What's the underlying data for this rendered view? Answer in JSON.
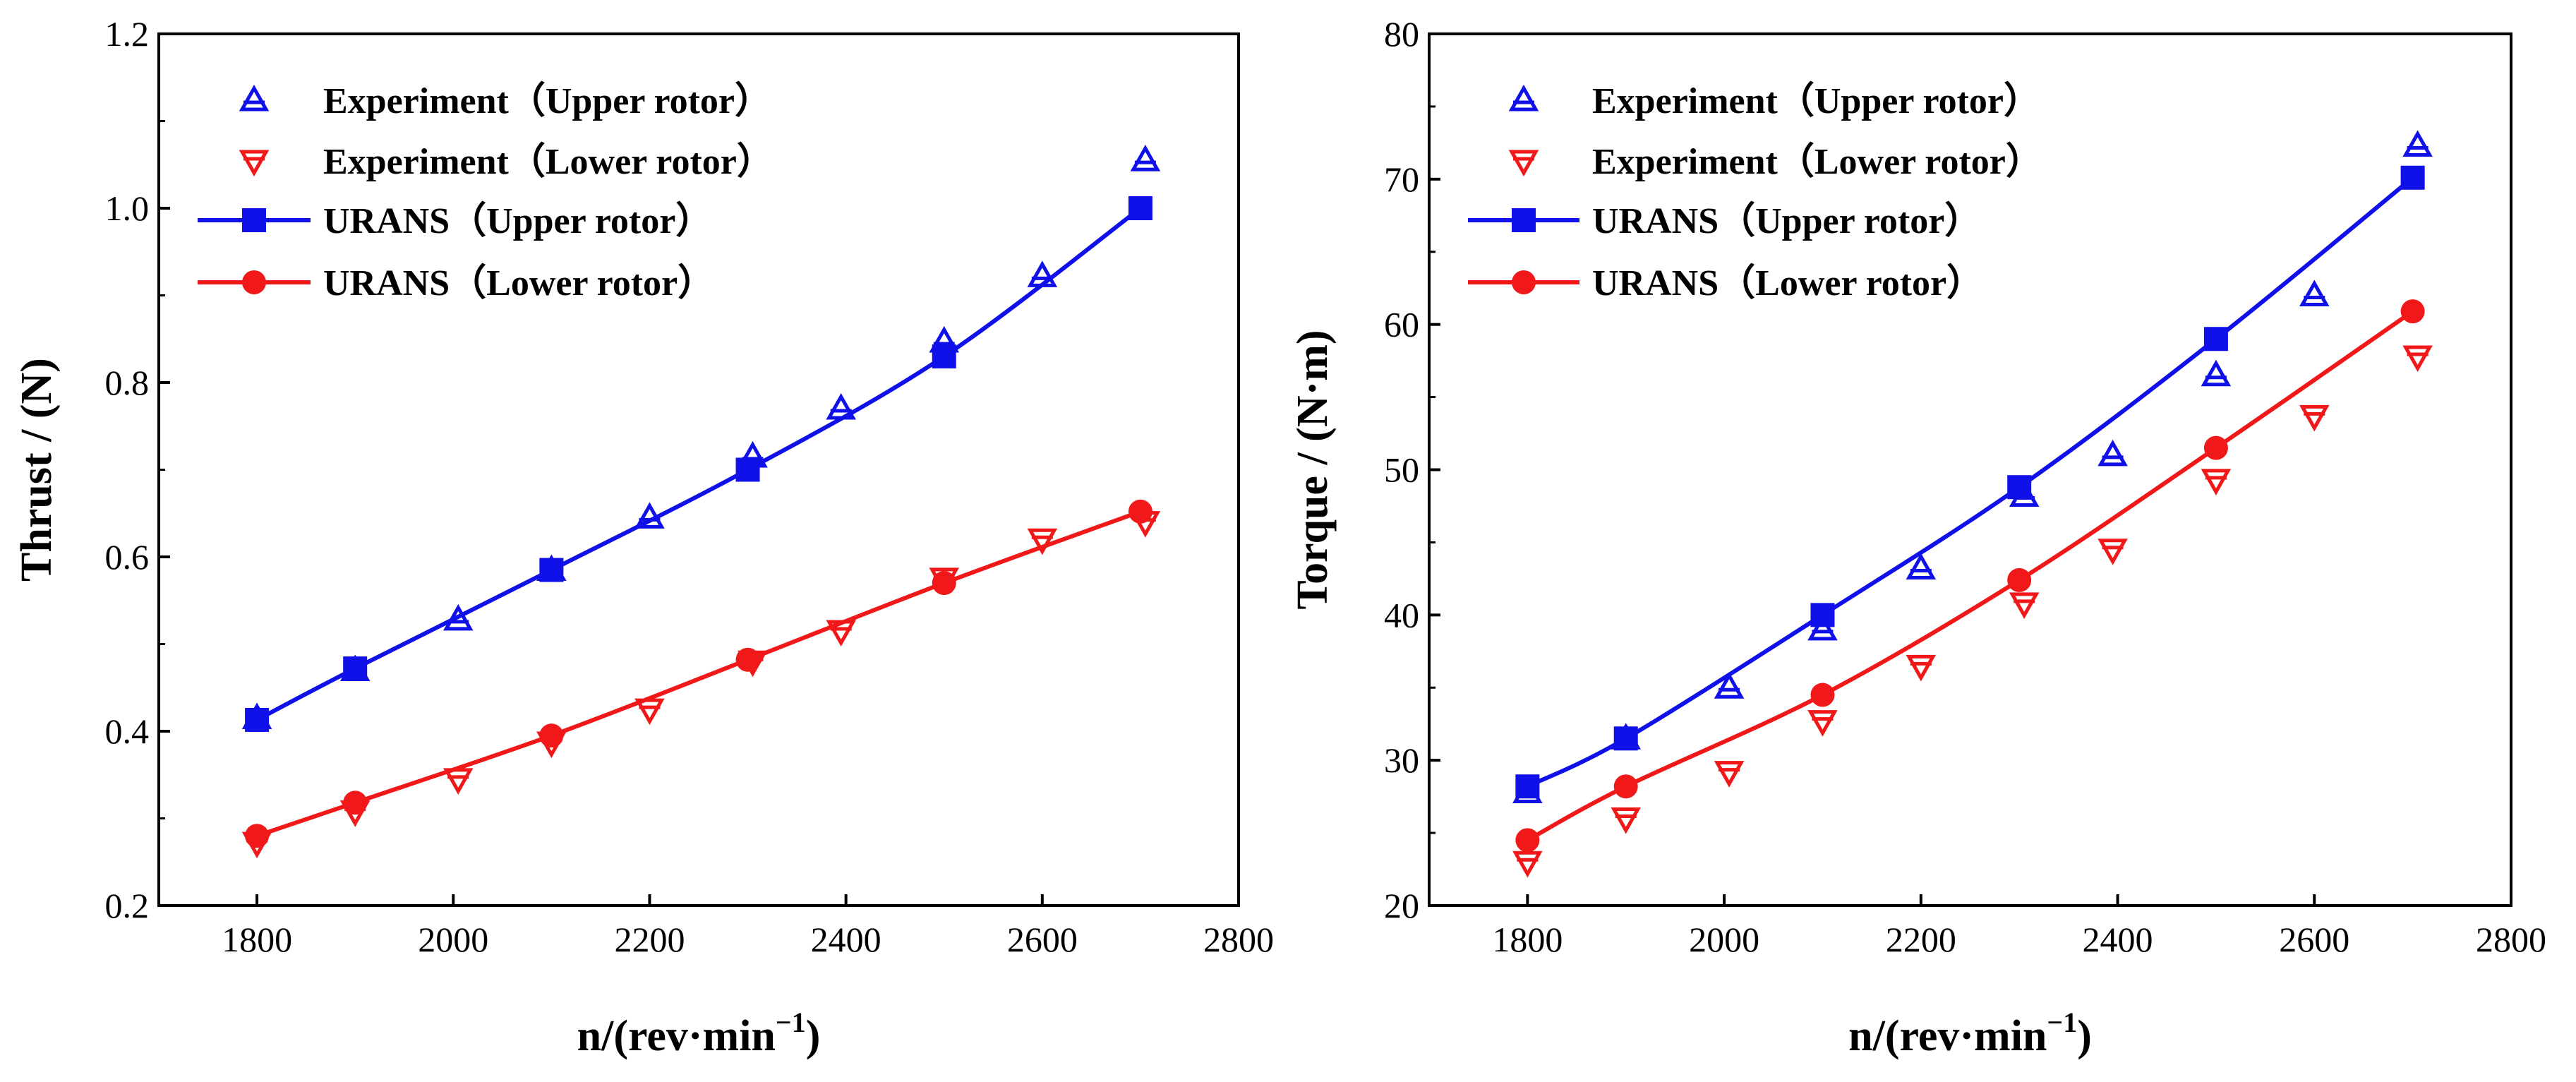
{
  "chart_data": [
    {
      "type": "line",
      "id": "thrust",
      "xlabel": "n/(rev·min",
      "xlabel_sup": "−1",
      "xlabel_close": ")",
      "ylabel": "Thrust / (N)",
      "xlim": [
        1700,
        2800
      ],
      "ylim": [
        0.2,
        1.2
      ],
      "xticks": [
        1800,
        2000,
        2200,
        2400,
        2600,
        2800
      ],
      "xtick_labels": [
        "1800",
        "2000",
        "2200",
        "2400",
        "2600",
        "2800"
      ],
      "yticks": [
        0.2,
        0.4,
        0.6,
        0.8,
        1.0,
        1.2
      ],
      "ytick_labels": [
        "0.2",
        "0.4",
        "0.6",
        "0.8",
        "1.0",
        "1.2"
      ],
      "legend_position": "top-left",
      "series": [
        {
          "name": "Experiment（Upper rotor）",
          "style": "exp",
          "marker": "triangle-up",
          "color": "#1010e8",
          "x": [
            1800,
            1900,
            2005,
            2100,
            2200,
            2305,
            2395,
            2500,
            2600,
            2705
          ],
          "y": [
            0.415,
            0.47,
            0.528,
            0.585,
            0.645,
            0.715,
            0.77,
            0.847,
            0.922,
            1.055
          ]
        },
        {
          "name": "Experiment（Lower rotor）",
          "style": "exp",
          "marker": "triangle-down",
          "color": "#f01818",
          "x": [
            1800,
            1900,
            2005,
            2100,
            2200,
            2305,
            2395,
            2500,
            2600,
            2705
          ],
          "y": [
            0.272,
            0.308,
            0.345,
            0.387,
            0.425,
            0.48,
            0.515,
            0.575,
            0.62,
            0.64
          ]
        },
        {
          "name": "URANS（Upper rotor）",
          "style": "sim",
          "marker": "square",
          "color": "#1010e8",
          "x": [
            1800,
            1900,
            2100,
            2300,
            2500,
            2700
          ],
          "y": [
            0.413,
            0.472,
            0.585,
            0.7,
            0.83,
            1.0
          ]
        },
        {
          "name": "URANS（Lower rotor）",
          "style": "sim",
          "marker": "circle",
          "color": "#f01818",
          "x": [
            1800,
            1900,
            2100,
            2300,
            2500,
            2700
          ],
          "y": [
            0.28,
            0.318,
            0.395,
            0.482,
            0.57,
            0.652
          ]
        }
      ]
    },
    {
      "type": "line",
      "id": "torque",
      "xlabel": "n/(rev·min",
      "xlabel_sup": "−1",
      "xlabel_close": ")",
      "ylabel": "Torque / (N·m)",
      "xlim": [
        1700,
        2800
      ],
      "ylim": [
        20,
        80
      ],
      "xticks": [
        1800,
        2000,
        2200,
        2400,
        2600,
        2800
      ],
      "xtick_labels": [
        "1800",
        "2000",
        "2200",
        "2400",
        "2600",
        "2800"
      ],
      "yticks": [
        20,
        30,
        40,
        50,
        60,
        70,
        80
      ],
      "ytick_labels": [
        "20",
        "30",
        "40",
        "50",
        "60",
        "70",
        "80"
      ],
      "legend_position": "top-left",
      "series": [
        {
          "name": "Experiment（Upper rotor）",
          "style": "exp",
          "marker": "triangle-up",
          "color": "#1010e8",
          "x": [
            1800,
            1900,
            2005,
            2100,
            2200,
            2305,
            2395,
            2500,
            2600,
            2705
          ],
          "y": [
            27.8,
            31.5,
            35.0,
            39.0,
            43.2,
            48.2,
            51.0,
            56.5,
            62.0,
            72.3
          ]
        },
        {
          "name": "Experiment（Lower rotor）",
          "style": "exp",
          "marker": "triangle-down",
          "color": "#f01818",
          "x": [
            1800,
            1900,
            2005,
            2100,
            2200,
            2305,
            2395,
            2500,
            2600,
            2705
          ],
          "y": [
            23.0,
            26.0,
            29.2,
            32.7,
            36.5,
            40.8,
            44.5,
            49.3,
            53.7,
            57.8
          ]
        },
        {
          "name": "URANS（Upper rotor）",
          "style": "sim",
          "marker": "square",
          "color": "#1010e8",
          "x": [
            1800,
            1900,
            2100,
            2300,
            2500,
            2700
          ],
          "y": [
            28.2,
            31.5,
            40.0,
            48.8,
            59.0,
            70.1
          ]
        },
        {
          "name": "URANS（Lower rotor）",
          "style": "sim",
          "marker": "circle",
          "color": "#f01818",
          "x": [
            1800,
            1900,
            2100,
            2300,
            2500,
            2700
          ],
          "y": [
            24.5,
            28.2,
            34.5,
            42.4,
            51.5,
            60.9
          ]
        }
      ]
    }
  ]
}
